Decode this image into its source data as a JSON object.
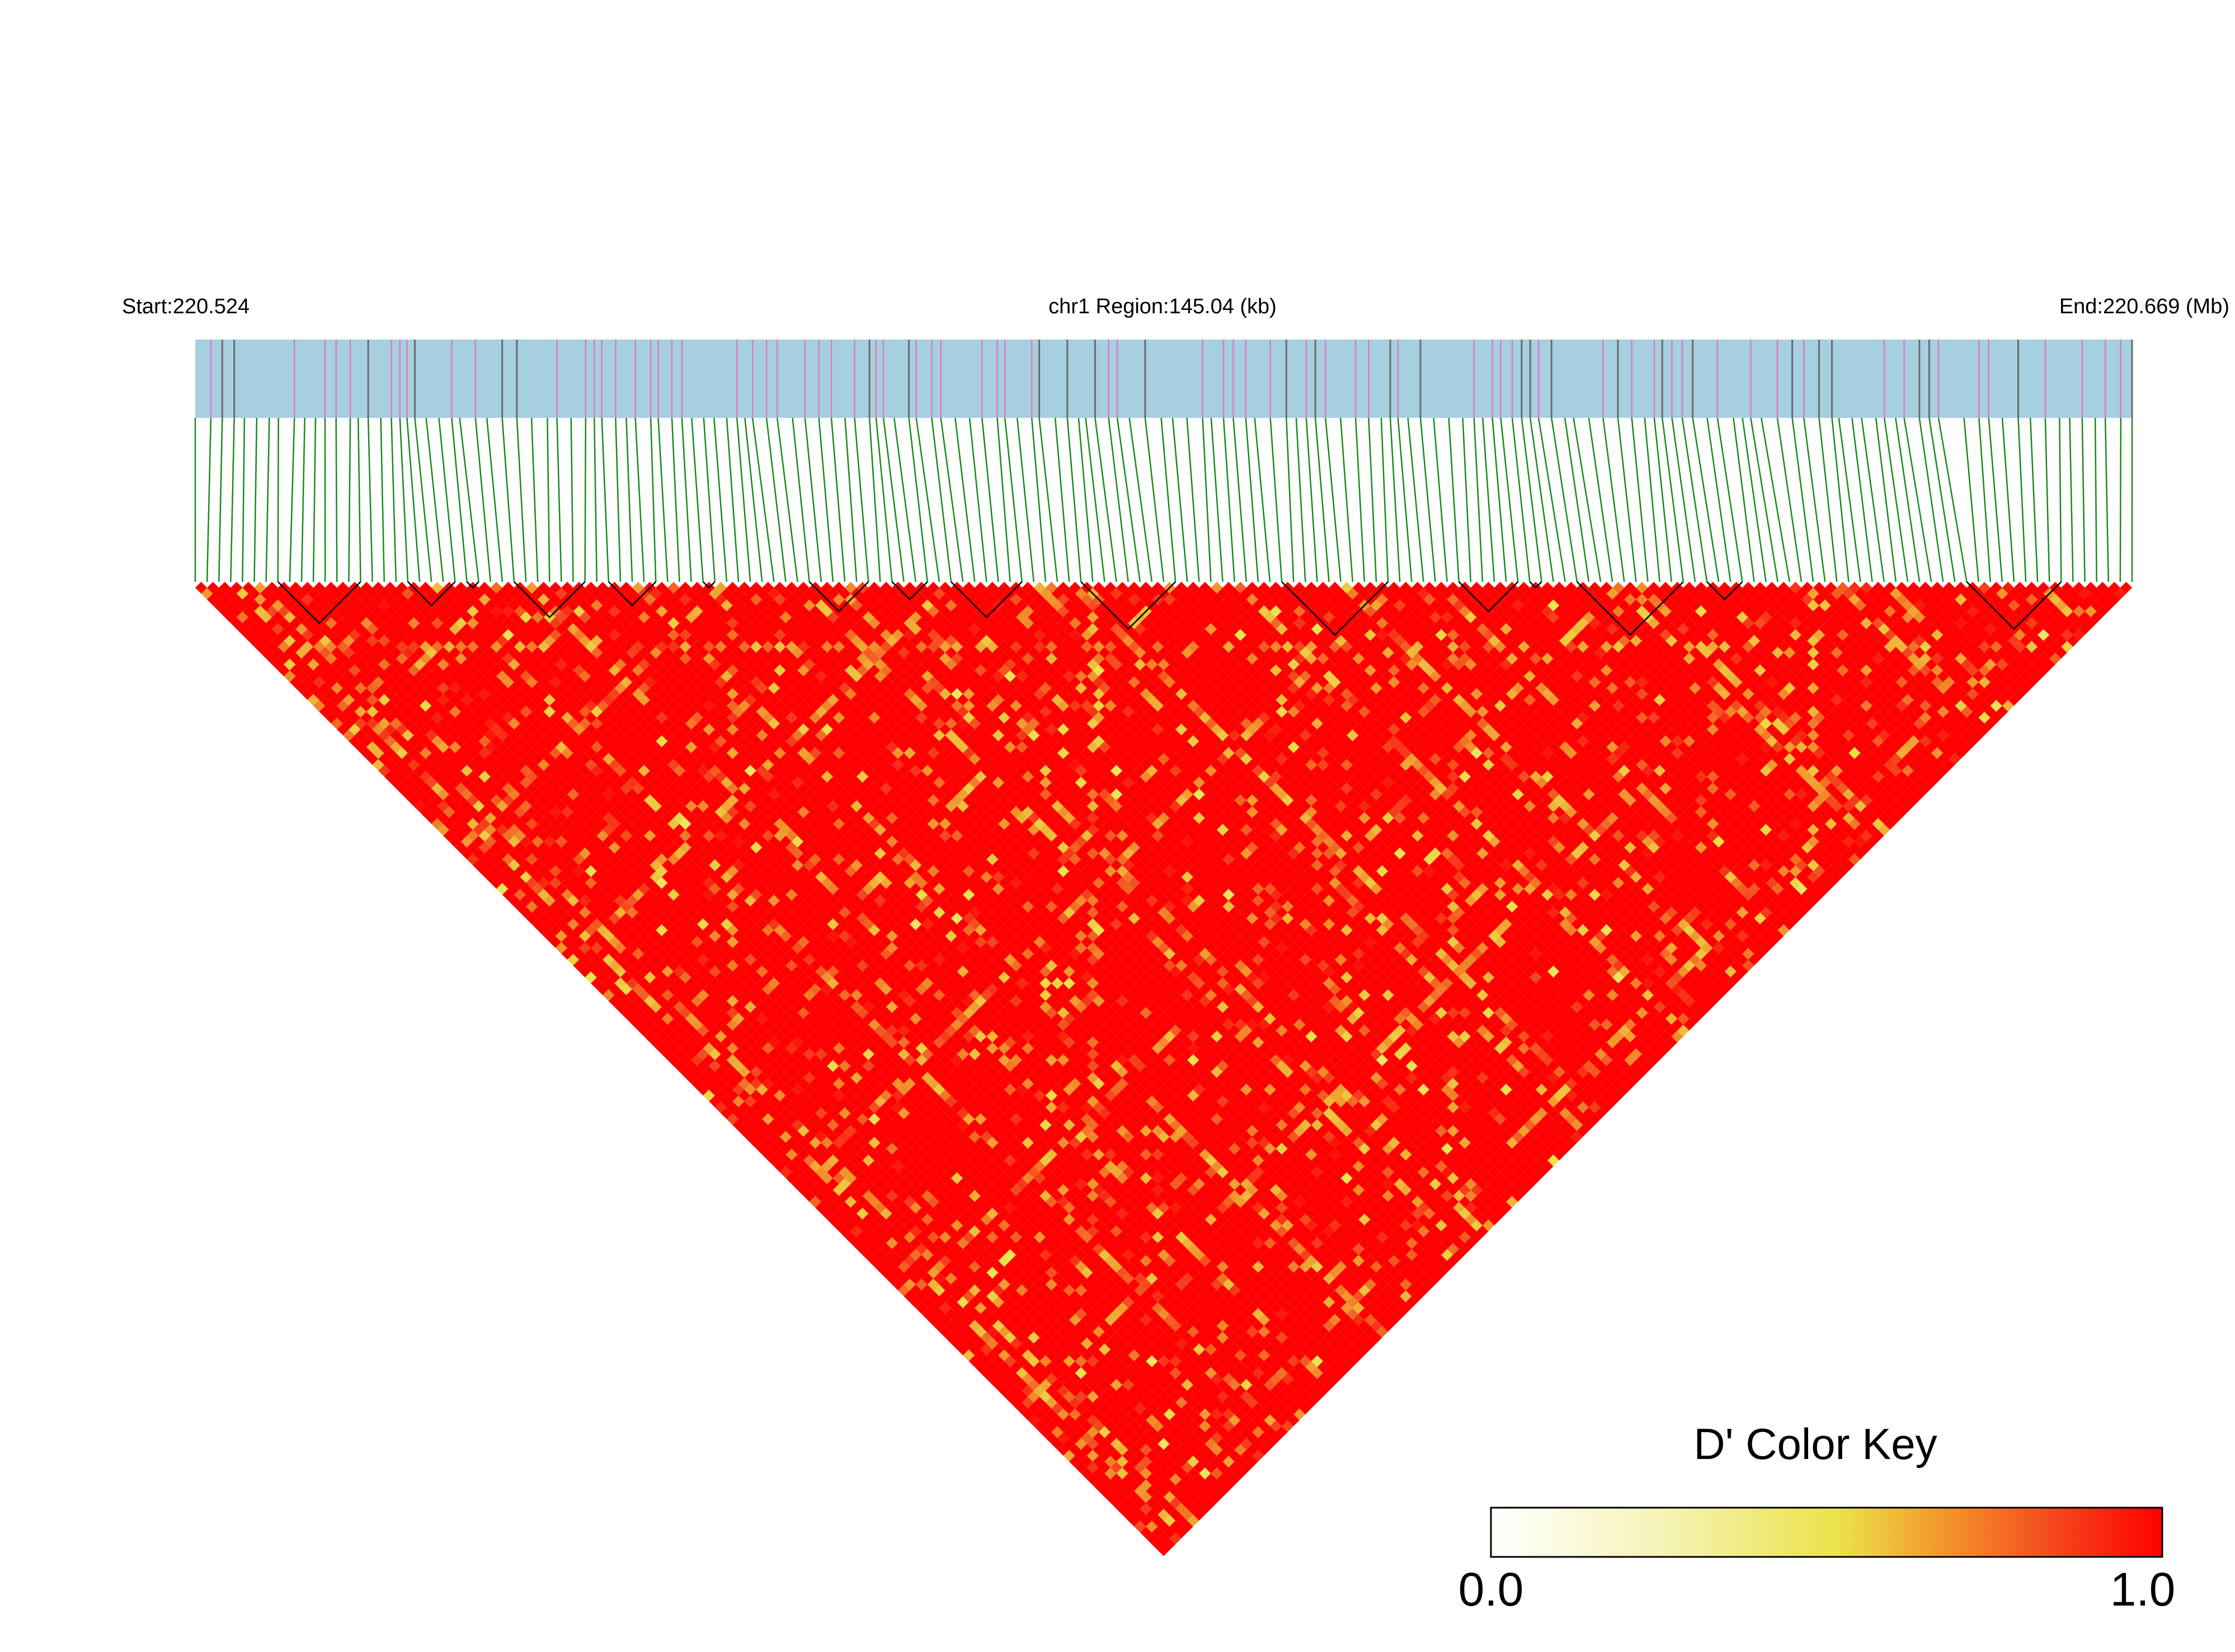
{
  "header": {
    "start_label": "Start:220.524",
    "region_label": "chr1 Region:145.04 (kb)",
    "end_label": "End:220.669 (Mb)"
  },
  "color_key": {
    "title": "D' Color Key",
    "min_label": "0.0",
    "max_label": "1.0",
    "colors": [
      "#ffffff",
      "#f6f4b8",
      "#ebe24a",
      "#f29d2e",
      "#f5421c",
      "#ff0000"
    ]
  },
  "chart_data": {
    "type": "heatmap",
    "description_kind": "linkage-disequilibrium triangle",
    "metric": "D'",
    "chromosome": "chr1",
    "region_start_mb": 220.524,
    "region_end_mb": 220.669,
    "region_length_kb": 145.04,
    "n_snps": 165,
    "value_range": [
      0.0,
      1.0
    ],
    "dominant_value": 1.0,
    "ld_blocks_snp_ranges": [
      [
        7,
        14
      ],
      [
        18,
        22
      ],
      [
        23,
        24
      ],
      [
        27,
        33
      ],
      [
        35,
        39
      ],
      [
        43,
        44
      ],
      [
        52,
        57
      ],
      [
        59,
        62
      ],
      [
        64,
        70
      ],
      [
        75,
        83
      ],
      [
        92,
        101
      ],
      [
        107,
        112
      ],
      [
        113,
        114
      ],
      [
        117,
        126
      ],
      [
        128,
        131
      ],
      [
        150,
        158
      ]
    ],
    "snp_gap_regions_mb": [
      [
        220.6527,
        220.6545
      ],
      [
        220.6578,
        220.6585
      ]
    ]
  },
  "colors": {
    "track_background": "#a6cfe0",
    "snp_tick_pink": "#e07ac0",
    "snp_tick_gray": "#6b6b6b",
    "connector_lines": "#1a8a1a",
    "ld_high": "#ff0000",
    "block_outline": "#000000"
  }
}
